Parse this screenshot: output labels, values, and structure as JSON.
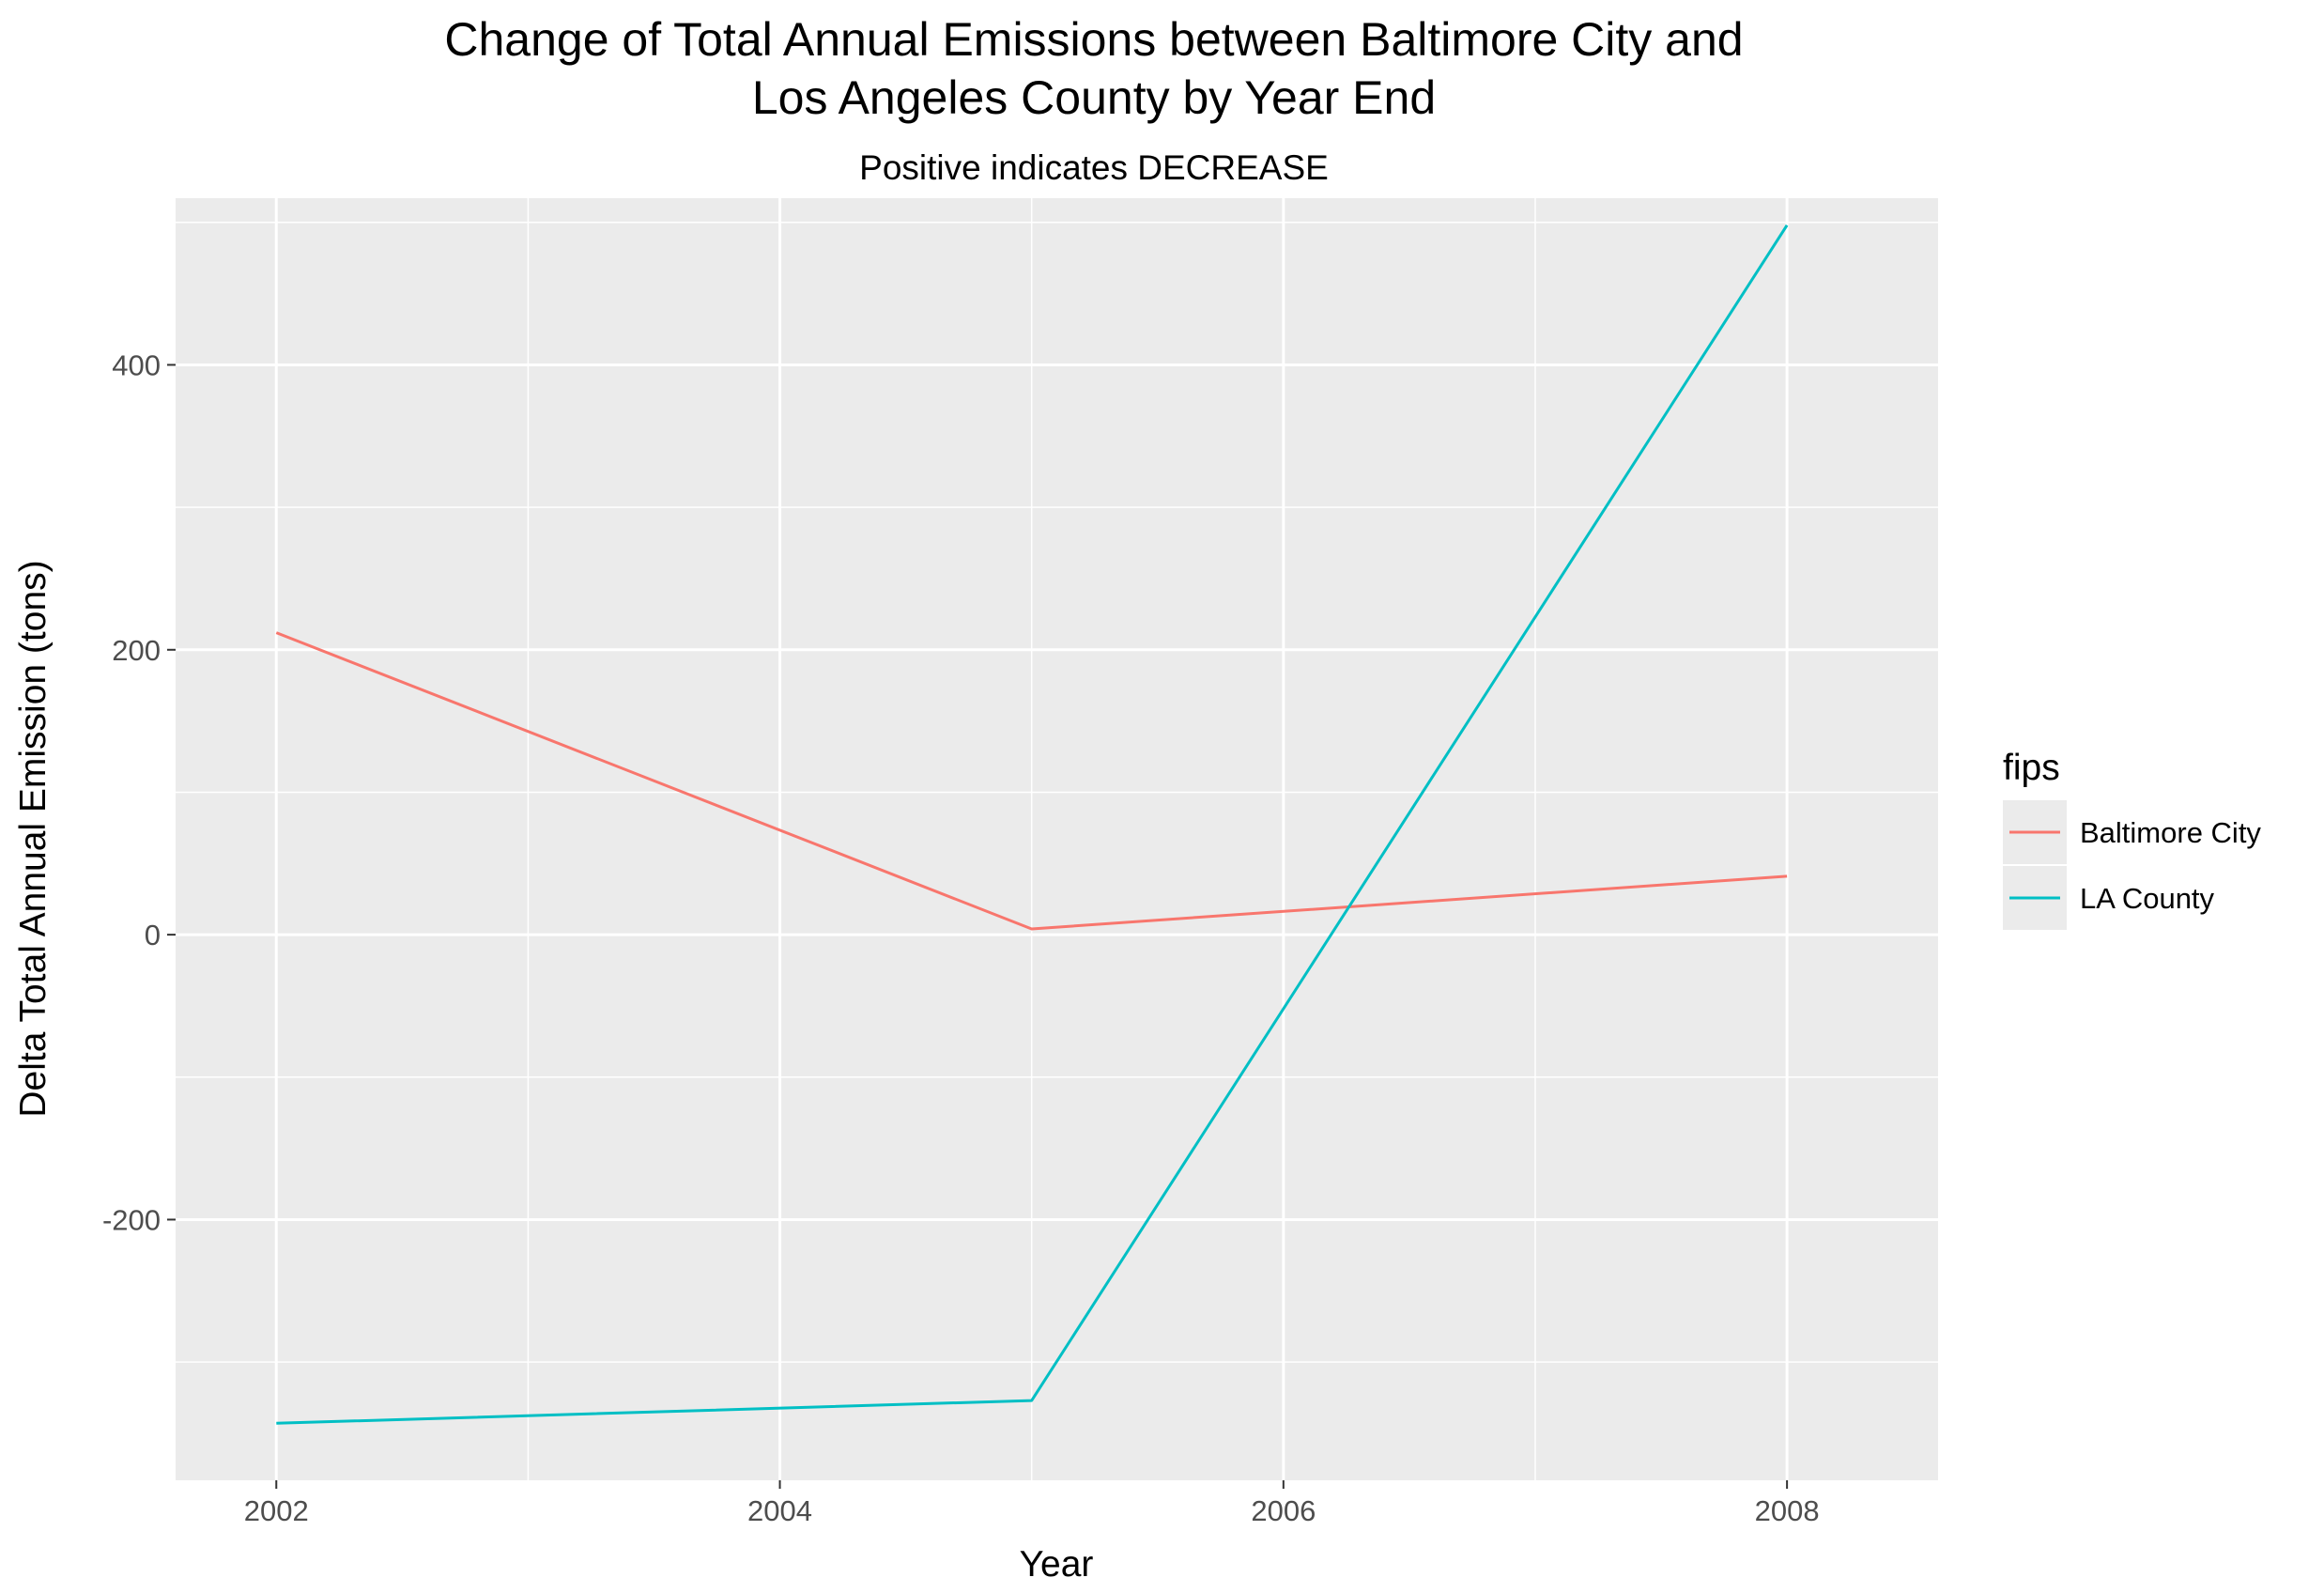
{
  "chart_data": {
    "type": "line",
    "title_lines": [
      "Change of Total Annual Emissions between Baltimore City and",
      "Los Angeles County by Year End"
    ],
    "subtitle": "Positive indicates DECREASE",
    "xlabel": "Year",
    "ylabel": "Delta Total Annual Emission (tons)",
    "x_ticks": [
      "2002",
      "2004",
      "2006",
      "2008"
    ],
    "y_ticks": [
      "-200",
      "0",
      "200",
      "400"
    ],
    "x_tick_values": [
      2002,
      2004,
      2006,
      2008
    ],
    "y_tick_values": [
      -200,
      0,
      200,
      400
    ],
    "xlim": [
      2001.6,
      2008.6
    ],
    "ylim": [
      -383,
      517
    ],
    "grid": true,
    "legend": {
      "title": "fips",
      "position": "right"
    },
    "series": [
      {
        "name": "Baltimore City",
        "color": "#F8766D",
        "x": [
          2002,
          2005,
          2008
        ],
        "y": [
          212,
          4,
          41
        ]
      },
      {
        "name": "LA County",
        "color": "#00BFC4",
        "x": [
          2002,
          2005,
          2008
        ],
        "y": [
          -343,
          -327,
          498
        ]
      }
    ]
  },
  "colors": {
    "panel_background": "#EBEBEB",
    "gridline": "#FFFFFF",
    "tick_label": "#4D4D4D"
  }
}
